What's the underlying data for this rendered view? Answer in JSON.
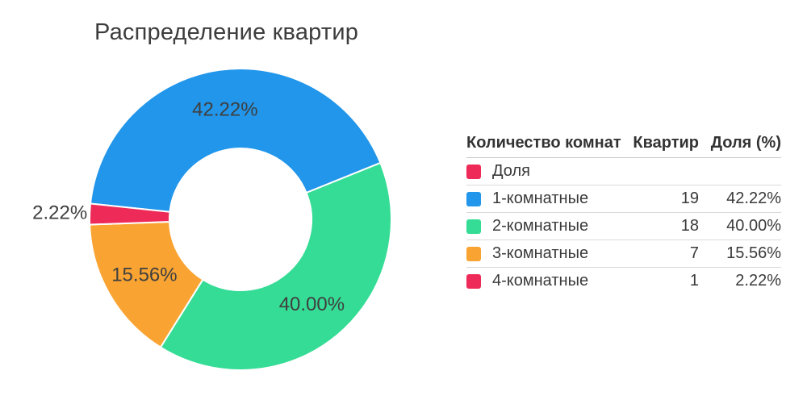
{
  "chart": {
    "title": "Распределение квартир"
  },
  "chart_data": {
    "type": "pie",
    "subtype": "donut",
    "title": "Распределение квартир",
    "categories": [
      "1-комнатные",
      "2-комнатные",
      "3-комнатные",
      "4-комнатные"
    ],
    "values": [
      19,
      18,
      7,
      1
    ],
    "percentages": [
      42.22,
      40.0,
      15.56,
      2.22
    ],
    "display_labels": [
      "42.22%",
      "40.00%",
      "15.56%",
      "2.22%"
    ],
    "colors": [
      "#2196eb",
      "#35dc95",
      "#f9a432",
      "#ee2b58"
    ],
    "legend_position": "right-table",
    "donut_hole_ratio": 0.47,
    "start_angle_deg": 276,
    "outer_radius_px": 187,
    "inner_radius_px": 88,
    "label_outside_threshold_pct": 5,
    "label_color": "#3f3f3f",
    "slice_border_color": "#ffffff"
  },
  "table": {
    "headers": {
      "rooms": "Количество комнат",
      "count": "Квартир",
      "share": "Доля (%)"
    },
    "rows": [
      {
        "label": "Доля",
        "count": "",
        "share": "",
        "color": "#ee2b58"
      },
      {
        "label": "1-комнатные",
        "count": "19",
        "share": "42.22%",
        "color": "#2196eb"
      },
      {
        "label": "2-комнатные",
        "count": "18",
        "share": "40.00%",
        "color": "#35dc95"
      },
      {
        "label": "3-комнатные",
        "count": "7",
        "share": "15.56%",
        "color": "#f9a432"
      },
      {
        "label": "4-комнатные",
        "count": "1",
        "share": "2.22%",
        "color": "#ee2b58"
      }
    ]
  }
}
